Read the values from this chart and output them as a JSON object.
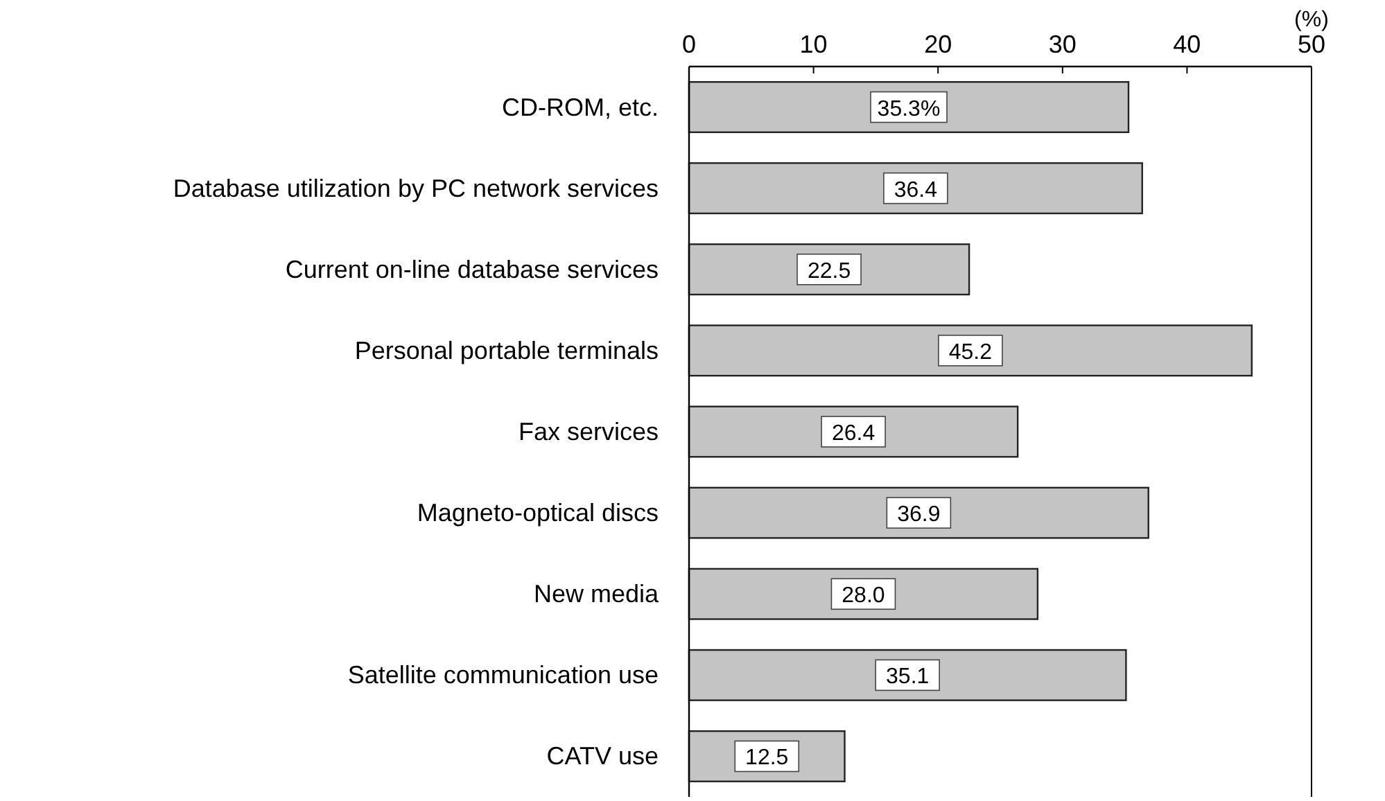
{
  "chart_data": {
    "type": "bar",
    "orientation": "horizontal",
    "xlabel": "(%)",
    "categories": [
      "CD-ROM, etc.",
      "Database utilization by PC network services",
      "Current on-line database services",
      "Personal portable terminals",
      "Fax services",
      "Magneto-optical discs",
      "New media",
      "Satellite communication use",
      "CATV use"
    ],
    "values": [
      35.3,
      36.4,
      22.5,
      45.2,
      26.4,
      36.9,
      28.0,
      35.1,
      12.5
    ],
    "value_labels": [
      "35.3%",
      "36.4",
      "22.5",
      "45.2",
      "26.4",
      "36.9",
      "28.0",
      "35.1",
      "12.5"
    ],
    "color": "#c4c4c4",
    "xlim": [
      0,
      50
    ],
    "xticks": [
      0,
      10,
      20,
      30,
      40,
      50
    ],
    "grid": false
  }
}
